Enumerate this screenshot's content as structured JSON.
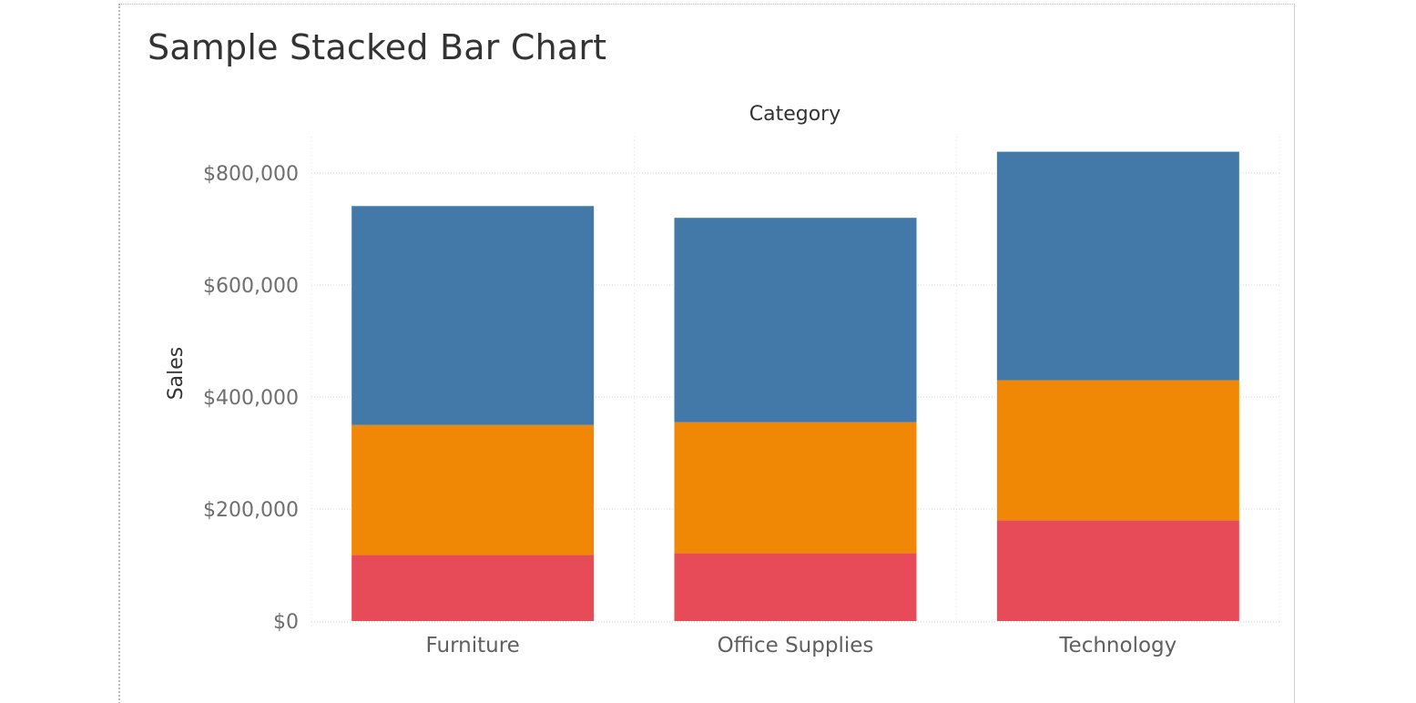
{
  "chart_data": {
    "type": "bar",
    "stacked": true,
    "title": "Sample Stacked Bar Chart",
    "xlabel": "Category",
    "ylabel": "Sales",
    "categories": [
      "Furniture",
      "Office Supplies",
      "Technology"
    ],
    "series": [
      {
        "values": [
          118000,
          121000,
          180000
        ],
        "color": "#e84b58"
      },
      {
        "values": [
          232000,
          234000,
          250000
        ],
        "color": "#f08705"
      },
      {
        "values": [
          391000,
          365000,
          408000
        ],
        "color": "#4279a8"
      }
    ],
    "ylim": [
      0,
      800000
    ],
    "yticks": [
      0,
      200000,
      400000,
      600000,
      800000
    ],
    "ytick_labels": [
      "$0",
      "$200,000",
      "$400,000",
      "$600,000",
      "$800,000"
    ],
    "grid": true,
    "legend": "none"
  }
}
